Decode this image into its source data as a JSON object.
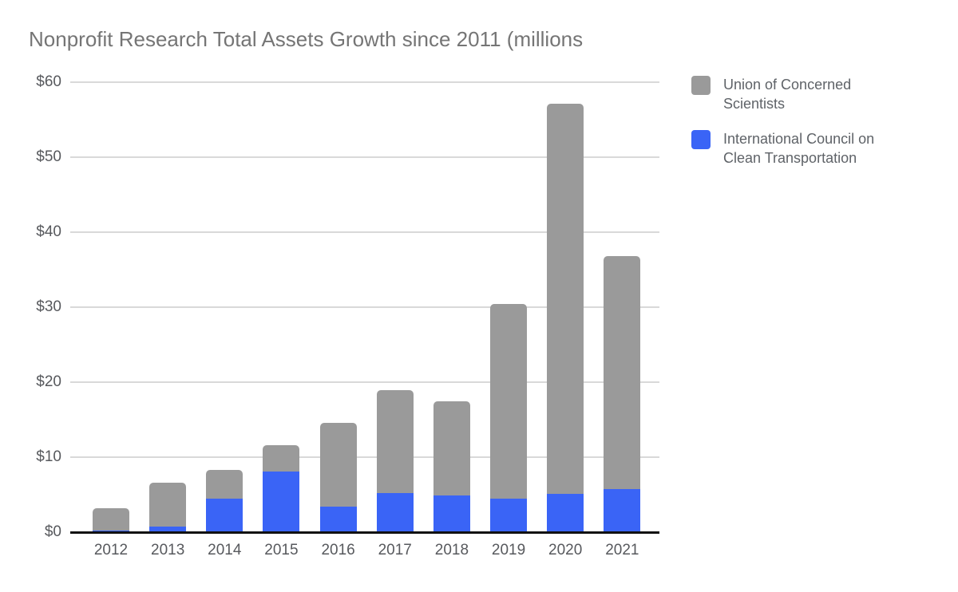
{
  "title": "Nonprofit Research Total Assets Growth since 2011 (millions",
  "colors": {
    "series_gray": "#9a9a9a",
    "series_blue": "#3a64f6",
    "title_text": "#757575",
    "axis_text": "#57595d",
    "legend_text": "#5f6368",
    "gridline": "#d9d9d9",
    "axis_line": "#111111"
  },
  "chart_data": {
    "type": "bar",
    "stacked": true,
    "title": "Nonprofit Research Total Assets Growth since 2011 (millions",
    "categories": [
      "2012",
      "2013",
      "2014",
      "2015",
      "2016",
      "2017",
      "2018",
      "2019",
      "2020",
      "2021"
    ],
    "series": [
      {
        "name": "Union of Concerned Scientists",
        "color": "#9a9a9a",
        "values": [
          3.0,
          5.9,
          3.8,
          3.5,
          11.2,
          13.7,
          12.5,
          25.9,
          52.0,
          31.1
        ]
      },
      {
        "name": "International Council on Clean Transportation",
        "color": "#3a64f6",
        "values": [
          0.2,
          0.7,
          4.5,
          8.1,
          3.4,
          5.2,
          4.9,
          4.5,
          5.1,
          5.7
        ]
      }
    ],
    "totals": [
      3.2,
      6.6,
      8.3,
      11.6,
      14.6,
      18.9,
      17.4,
      30.4,
      57.1,
      36.8
    ],
    "xlabel": "",
    "ylabel": "",
    "ylim": [
      0,
      60
    ],
    "ytick_labels": [
      "$0",
      "$10",
      "$20",
      "$30",
      "$40",
      "$50",
      "$60"
    ],
    "ytick_values": [
      0,
      10,
      20,
      30,
      40,
      50,
      60
    ],
    "grid": true,
    "legend_position": "right"
  },
  "legend": {
    "items": [
      {
        "label": "Union of Concerned Scientists",
        "color": "#9a9a9a"
      },
      {
        "label": "International Council on Clean Transportation",
        "color": "#3a64f6"
      }
    ]
  }
}
